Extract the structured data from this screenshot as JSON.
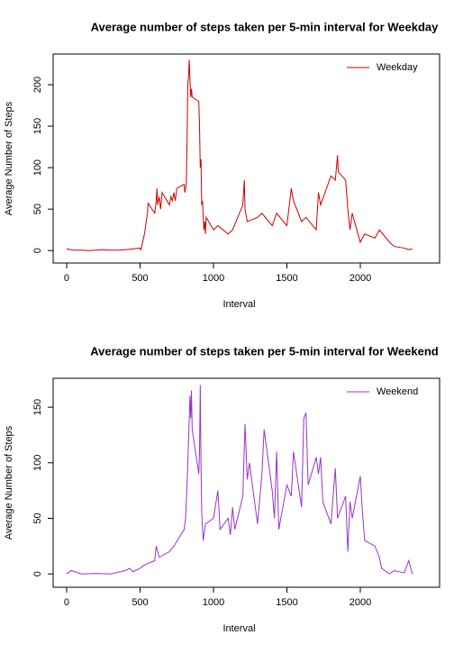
{
  "chart_data": [
    {
      "type": "line",
      "title": "Average number of steps taken per 5-min interval for Weekday",
      "xlabel": "Interval",
      "ylabel": "Average Number of Steps",
      "x": [
        0,
        50,
        100,
        150,
        200,
        250,
        300,
        350,
        400,
        450,
        500,
        505,
        510,
        530,
        550,
        555,
        600,
        610,
        615,
        620,
        630,
        640,
        650,
        700,
        710,
        720,
        730,
        740,
        750,
        800,
        805,
        815,
        820,
        825,
        830,
        835,
        840,
        845,
        850,
        855,
        900,
        905,
        910,
        915,
        920,
        925,
        930,
        935,
        940,
        945,
        950,
        1000,
        1030,
        1100,
        1130,
        1200,
        1210,
        1215,
        1230,
        1300,
        1330,
        1400,
        1430,
        1500,
        1530,
        1545,
        1600,
        1630,
        1700,
        1715,
        1730,
        1800,
        1830,
        1845,
        1850,
        1900,
        1915,
        1930,
        1945,
        2000,
        2030,
        2100,
        2130,
        2200,
        2230,
        2300,
        2330,
        2355
      ],
      "series": [
        {
          "name": "Weekday",
          "color": "#cc0000",
          "values": [
            2,
            0.5,
            0.5,
            0,
            0.5,
            1,
            0.5,
            0.5,
            1,
            2,
            3,
            1,
            4,
            20,
            45,
            57,
            45,
            60,
            75,
            55,
            65,
            50,
            70,
            55,
            65,
            60,
            70,
            60,
            75,
            80,
            70,
            80,
            130,
            200,
            210,
            230,
            205,
            185,
            195,
            185,
            180,
            150,
            100,
            110,
            55,
            60,
            40,
            25,
            35,
            20,
            40,
            25,
            30,
            20,
            25,
            55,
            85,
            50,
            35,
            40,
            45,
            30,
            45,
            30,
            75,
            60,
            35,
            40,
            25,
            70,
            55,
            90,
            85,
            115,
            95,
            85,
            50,
            25,
            45,
            10,
            20,
            15,
            25,
            10,
            5,
            3,
            1,
            2
          ]
        }
      ],
      "xlim": [
        -92,
        2540
      ],
      "ylim": [
        -15,
        237
      ],
      "xticks": [
        0,
        500,
        1000,
        1500,
        2000
      ],
      "yticks": [
        0,
        50,
        100,
        150,
        200
      ],
      "legend": "topright"
    },
    {
      "type": "line",
      "title": "Average number of steps taken per 5-min interval for Weekend",
      "xlabel": "Interval",
      "ylabel": "Average Number of Steps",
      "x": [
        0,
        30,
        100,
        200,
        300,
        400,
        430,
        450,
        500,
        530,
        600,
        610,
        630,
        700,
        730,
        800,
        810,
        820,
        830,
        840,
        845,
        850,
        855,
        900,
        905,
        910,
        915,
        920,
        930,
        945,
        1000,
        1030,
        1045,
        1100,
        1115,
        1130,
        1145,
        1200,
        1215,
        1230,
        1245,
        1300,
        1330,
        1345,
        1400,
        1415,
        1430,
        1445,
        1500,
        1530,
        1545,
        1600,
        1615,
        1630,
        1645,
        1700,
        1715,
        1730,
        1745,
        1800,
        1830,
        1845,
        1900,
        1915,
        1930,
        1945,
        2000,
        2015,
        2030,
        2100,
        2130,
        2145,
        2200,
        2230,
        2300,
        2330,
        2355
      ],
      "series": [
        {
          "name": "Weekend",
          "color": "#9a32cd",
          "values": [
            0,
            3,
            0,
            0.5,
            0,
            3,
            5,
            2,
            5,
            8,
            12,
            25,
            15,
            20,
            25,
            40,
            50,
            80,
            120,
            160,
            140,
            165,
            130,
            90,
            110,
            170,
            100,
            55,
            30,
            45,
            50,
            75,
            40,
            50,
            35,
            60,
            40,
            70,
            135,
            85,
            100,
            45,
            90,
            130,
            75,
            50,
            110,
            40,
            80,
            70,
            110,
            60,
            140,
            145,
            80,
            105,
            90,
            105,
            65,
            45,
            95,
            50,
            70,
            20,
            65,
            50,
            88,
            55,
            30,
            25,
            15,
            5,
            0,
            3,
            1,
            12,
            0
          ]
        }
      ],
      "xlim": [
        -92,
        2540
      ],
      "ylim": [
        -12,
        176
      ],
      "xticks": [
        0,
        500,
        1000,
        1500,
        2000
      ],
      "yticks": [
        0,
        50,
        100,
        150
      ],
      "legend": "topright"
    }
  ]
}
